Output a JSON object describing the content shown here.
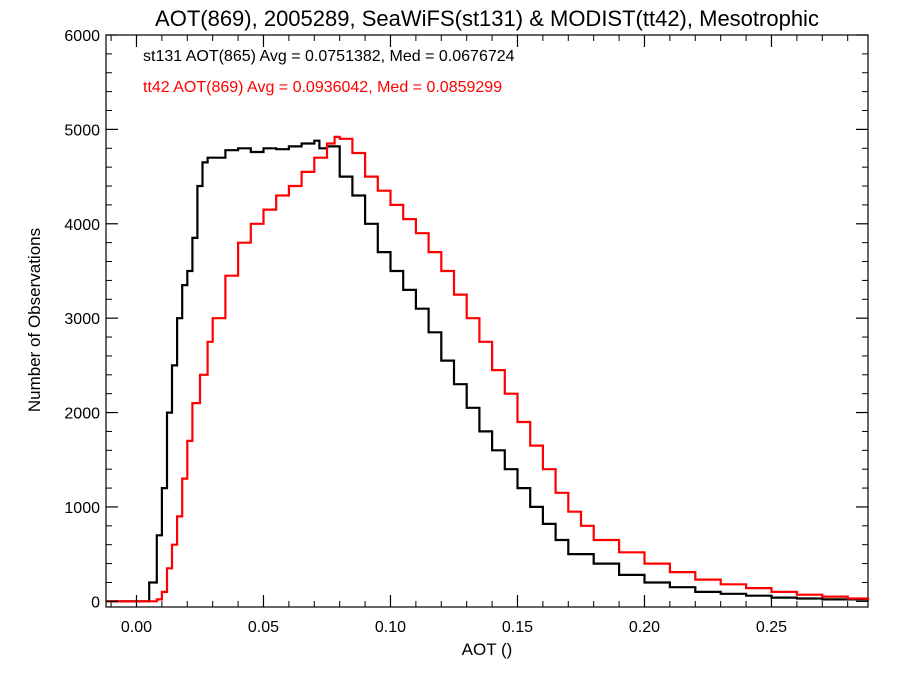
{
  "chart_data": {
    "type": "line",
    "step": true,
    "title": "AOT(869), 2005289, SeaWiFS(st131) & MODIST(tt42), Mesotrophic",
    "xlabel": "AOT ()",
    "ylabel": "Number of Observations",
    "xlim": [
      -0.012,
      0.288
    ],
    "ylim": [
      -60,
      6000
    ],
    "x_ticks": [
      "0.00",
      "0.05",
      "0.10",
      "0.15",
      "0.20",
      "0.25"
    ],
    "x_tick_values": [
      0.0,
      0.05,
      0.1,
      0.15,
      0.2,
      0.25
    ],
    "y_ticks": [
      "0",
      "1000",
      "2000",
      "3000",
      "4000",
      "5000",
      "6000"
    ],
    "y_tick_values": [
      0,
      1000,
      2000,
      3000,
      4000,
      5000,
      6000
    ],
    "grid": false,
    "annotations": [
      {
        "text": "st131 AOT(865) Avg = 0.0751382, Med = 0.0676724",
        "color": "#000000"
      },
      {
        "text": "tt42 AOT(869) Avg = 0.0936042, Med = 0.0859299",
        "color": "#ff0000"
      }
    ],
    "series": [
      {
        "color": "#000000",
        "x": [
          -0.012,
          0.0,
          0.003,
          0.005,
          0.008,
          0.01,
          0.012,
          0.014,
          0.016,
          0.018,
          0.02,
          0.022,
          0.024,
          0.026,
          0.028,
          0.03,
          0.035,
          0.04,
          0.045,
          0.05,
          0.055,
          0.06,
          0.065,
          0.07,
          0.072,
          0.075,
          0.08,
          0.085,
          0.09,
          0.095,
          0.1,
          0.105,
          0.11,
          0.115,
          0.12,
          0.125,
          0.13,
          0.135,
          0.14,
          0.145,
          0.15,
          0.155,
          0.16,
          0.165,
          0.17,
          0.18,
          0.19,
          0.2,
          0.21,
          0.22,
          0.23,
          0.24,
          0.25,
          0.26,
          0.27,
          0.288
        ],
        "y": [
          0,
          0,
          0,
          200,
          700,
          1200,
          2000,
          2500,
          3000,
          3350,
          3500,
          3850,
          4400,
          4650,
          4700,
          4700,
          4780,
          4800,
          4760,
          4800,
          4790,
          4820,
          4850,
          4880,
          4800,
          4820,
          4500,
          4300,
          4000,
          3700,
          3500,
          3300,
          3100,
          2850,
          2550,
          2300,
          2050,
          1800,
          1600,
          1400,
          1200,
          1000,
          820,
          650,
          500,
          400,
          280,
          200,
          150,
          100,
          80,
          60,
          40,
          30,
          20,
          10
        ]
      },
      {
        "color": "#ff0000",
        "x": [
          -0.012,
          0.0,
          0.005,
          0.008,
          0.01,
          0.012,
          0.014,
          0.016,
          0.018,
          0.02,
          0.022,
          0.025,
          0.028,
          0.03,
          0.035,
          0.04,
          0.045,
          0.05,
          0.055,
          0.06,
          0.065,
          0.07,
          0.075,
          0.078,
          0.08,
          0.085,
          0.09,
          0.095,
          0.1,
          0.105,
          0.11,
          0.115,
          0.12,
          0.125,
          0.13,
          0.135,
          0.14,
          0.145,
          0.15,
          0.155,
          0.16,
          0.165,
          0.17,
          0.175,
          0.18,
          0.19,
          0.2,
          0.21,
          0.22,
          0.23,
          0.24,
          0.25,
          0.26,
          0.27,
          0.28,
          0.288
        ],
        "y": [
          0,
          0,
          0,
          20,
          100,
          350,
          600,
          900,
          1300,
          1700,
          2100,
          2400,
          2750,
          3000,
          3450,
          3800,
          4000,
          4150,
          4300,
          4400,
          4550,
          4700,
          4850,
          4920,
          4900,
          4750,
          4500,
          4350,
          4200,
          4050,
          3900,
          3700,
          3500,
          3250,
          3000,
          2750,
          2450,
          2200,
          1900,
          1650,
          1400,
          1150,
          950,
          800,
          650,
          520,
          400,
          310,
          230,
          180,
          140,
          100,
          70,
          50,
          30,
          15
        ]
      }
    ]
  }
}
